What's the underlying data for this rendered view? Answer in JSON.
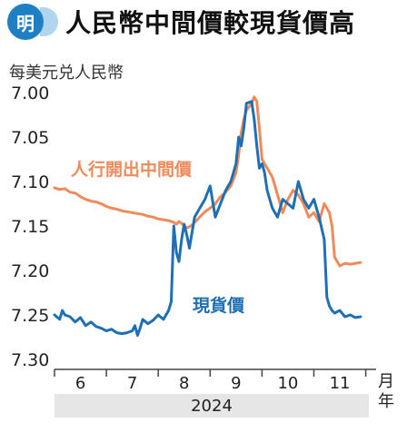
{
  "header": {
    "logo_text": "明",
    "title": "人民幣中間價較現貨價高"
  },
  "unit_label": "每美元兑人民幣",
  "x_unit": "月",
  "x_unit_2": "年",
  "year": "2024",
  "colors": {
    "midpoint": "#ef8a5a",
    "spot": "#1f6fb5",
    "logo": "#1f7fc4"
  },
  "chart_data": {
    "type": "line",
    "title": "人民幣中間價較現貨價高",
    "ylabel": "每美元兑人民幣",
    "xlabel": "月",
    "y_inverted": true,
    "ylim": [
      7.0,
      7.3
    ],
    "yticks": [
      "7.00",
      "7.05",
      "7.10",
      "7.15",
      "7.20",
      "7.25",
      "7.30"
    ],
    "xticks": [
      "6",
      "7",
      "8",
      "9",
      "10",
      "11"
    ],
    "xlim": [
      5.5,
      11.7
    ],
    "series": [
      {
        "name": "人行開出中間價",
        "color": "#ef8a5a",
        "x": [
          5.5,
          5.6,
          5.7,
          5.8,
          5.9,
          6.0,
          6.1,
          6.2,
          6.3,
          6.4,
          6.5,
          6.6,
          6.7,
          6.8,
          6.9,
          7.0,
          7.1,
          7.2,
          7.3,
          7.4,
          7.5,
          7.6,
          7.7,
          7.8,
          7.85,
          7.9,
          7.95,
          8.0,
          8.05,
          8.1,
          8.15,
          8.2,
          8.3,
          8.4,
          8.5,
          8.6,
          8.7,
          8.8,
          8.9,
          9.0,
          9.05,
          9.1,
          9.15,
          9.2,
          9.3,
          9.35,
          9.4,
          9.45,
          9.5,
          9.55,
          9.6,
          9.7,
          9.8,
          9.9,
          10.0,
          10.1,
          10.2,
          10.3,
          10.4,
          10.5,
          10.6,
          10.7,
          10.8,
          10.85,
          10.9,
          11.0,
          11.1,
          11.2,
          11.3,
          11.4
        ],
        "y": [
          7.107,
          7.109,
          7.108,
          7.112,
          7.113,
          7.117,
          7.12,
          7.122,
          7.123,
          7.125,
          7.128,
          7.13,
          7.131,
          7.133,
          7.134,
          7.135,
          7.136,
          7.137,
          7.139,
          7.14,
          7.142,
          7.143,
          7.144,
          7.146,
          7.148,
          7.145,
          7.147,
          7.15,
          7.152,
          7.151,
          7.149,
          7.146,
          7.14,
          7.134,
          7.13,
          7.125,
          7.117,
          7.112,
          7.105,
          7.09,
          7.07,
          7.045,
          7.03,
          7.02,
          7.012,
          7.005,
          7.01,
          7.04,
          7.075,
          7.08,
          7.085,
          7.095,
          7.115,
          7.135,
          7.12,
          7.11,
          7.115,
          7.125,
          7.14,
          7.135,
          7.145,
          7.125,
          7.135,
          7.15,
          7.185,
          7.195,
          7.192,
          7.193,
          7.192,
          7.191
        ]
      },
      {
        "name": "現貨價",
        "color": "#1f6fb5",
        "x": [
          5.5,
          5.6,
          5.65,
          5.7,
          5.8,
          5.9,
          6.0,
          6.1,
          6.2,
          6.3,
          6.4,
          6.5,
          6.6,
          6.7,
          6.8,
          6.9,
          7.0,
          7.05,
          7.1,
          7.15,
          7.2,
          7.3,
          7.4,
          7.5,
          7.6,
          7.7,
          7.75,
          7.8,
          7.85,
          7.9,
          7.95,
          8.0,
          8.05,
          8.1,
          8.2,
          8.3,
          8.4,
          8.5,
          8.6,
          8.7,
          8.8,
          8.9,
          9.0,
          9.05,
          9.1,
          9.15,
          9.2,
          9.3,
          9.35,
          9.4,
          9.45,
          9.5,
          9.55,
          9.6,
          9.7,
          9.8,
          9.9,
          10.0,
          10.1,
          10.2,
          10.3,
          10.4,
          10.5,
          10.6,
          10.7,
          10.75,
          10.8,
          10.85,
          10.9,
          11.0,
          11.1,
          11.2,
          11.3,
          11.4
        ],
        "y": [
          7.25,
          7.255,
          7.245,
          7.25,
          7.252,
          7.258,
          7.253,
          7.262,
          7.258,
          7.263,
          7.265,
          7.268,
          7.266,
          7.27,
          7.271,
          7.27,
          7.268,
          7.262,
          7.273,
          7.265,
          7.255,
          7.26,
          7.256,
          7.25,
          7.255,
          7.245,
          7.235,
          7.15,
          7.18,
          7.19,
          7.165,
          7.148,
          7.16,
          7.175,
          7.14,
          7.13,
          7.12,
          7.105,
          7.14,
          7.125,
          7.11,
          7.1,
          7.08,
          7.05,
          7.06,
          7.04,
          7.012,
          7.01,
          7.03,
          7.06,
          7.085,
          7.08,
          7.09,
          7.11,
          7.13,
          7.14,
          7.12,
          7.125,
          7.13,
          7.1,
          7.12,
          7.13,
          7.12,
          7.14,
          7.165,
          7.23,
          7.24,
          7.245,
          7.248,
          7.245,
          7.252,
          7.25,
          7.253,
          7.252
        ]
      }
    ]
  }
}
